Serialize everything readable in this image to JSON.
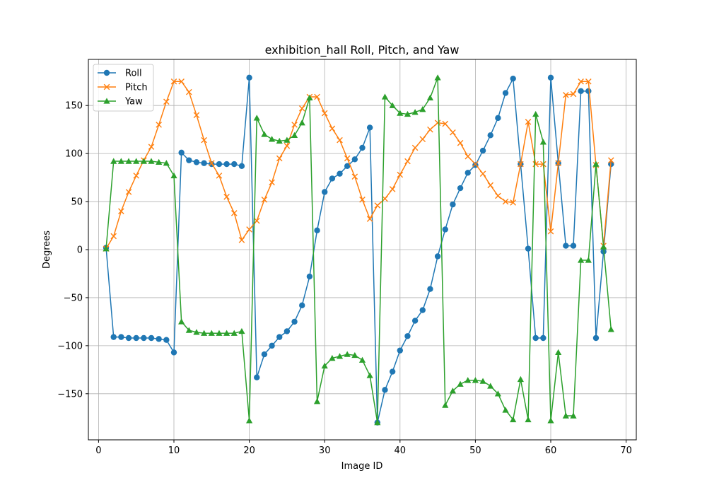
{
  "chart_data": {
    "type": "line",
    "title": "exhibition_hall Roll, Pitch, and Yaw",
    "xlabel": "Image ID",
    "ylabel": "Degrees",
    "xlim": [
      -1.35,
      71.35
    ],
    "ylim": [
      -198,
      198
    ],
    "xticks": [
      0,
      10,
      20,
      30,
      40,
      50,
      60,
      70
    ],
    "yticks": [
      -150,
      -100,
      -50,
      0,
      50,
      100,
      150
    ],
    "grid": true,
    "legend_position": "top-left",
    "x": [
      1,
      2,
      3,
      4,
      5,
      6,
      7,
      8,
      9,
      10,
      11,
      12,
      13,
      14,
      15,
      16,
      17,
      18,
      19,
      20,
      21,
      22,
      23,
      24,
      25,
      26,
      27,
      28,
      29,
      30,
      31,
      32,
      33,
      34,
      35,
      36,
      37,
      38,
      39,
      40,
      41,
      42,
      43,
      44,
      45,
      46,
      47,
      48,
      49,
      50,
      51,
      52,
      53,
      54,
      55,
      56,
      57,
      58,
      59,
      60,
      61,
      62,
      63,
      64,
      65,
      66,
      67,
      68
    ],
    "series": [
      {
        "name": "Roll",
        "color": "#1f77b4",
        "marker": "circle",
        "values": [
          2,
          -91,
          -91,
          -92,
          -92,
          -92,
          -92,
          -93,
          -94,
          -107,
          101,
          93,
          91,
          90,
          89,
          89,
          89,
          89,
          87,
          179,
          -133,
          -109,
          -100,
          -91,
          -85,
          -75,
          -58,
          -28,
          20,
          60,
          74,
          79,
          87,
          94,
          106,
          127,
          -180,
          -146,
          -127,
          -105,
          -90,
          -74,
          -63,
          -41,
          -7,
          21,
          47,
          64,
          80,
          88,
          103,
          119,
          137,
          163,
          178,
          89,
          1,
          -92,
          -92,
          179,
          90,
          4,
          4,
          165,
          165,
          -92,
          -2,
          89
        ]
      },
      {
        "name": "Pitch",
        "color": "#ff7f0e",
        "marker": "x",
        "values": [
          1,
          14,
          40,
          60,
          77,
          93,
          107,
          130,
          154,
          175,
          175,
          164,
          140,
          114,
          90,
          77,
          55,
          38,
          10,
          21,
          30,
          52,
          70,
          95,
          108,
          130,
          147,
          159,
          159,
          142,
          126,
          114,
          95,
          76,
          52,
          32,
          46,
          53,
          63,
          78,
          92,
          106,
          115,
          125,
          132,
          131,
          122,
          111,
          97,
          89,
          79,
          67,
          56,
          50,
          49,
          89,
          133,
          89,
          89,
          19,
          90,
          161,
          162,
          175,
          175,
          88,
          4,
          93
        ]
      },
      {
        "name": "Yaw",
        "color": "#2ca02c",
        "marker": "triangle",
        "values": [
          1,
          92,
          92,
          92,
          92,
          92,
          92,
          91,
          90,
          77,
          -75,
          -84,
          -86,
          -87,
          -87,
          -87,
          -87,
          -87,
          -85,
          -178,
          137,
          120,
          115,
          113,
          114,
          119,
          132,
          158,
          -158,
          -121,
          -113,
          -111,
          -109,
          -110,
          -115,
          -131,
          -180,
          159,
          150,
          142,
          141,
          143,
          146,
          158,
          179,
          -162,
          -147,
          -140,
          -136,
          -136,
          -137,
          -142,
          -150,
          -167,
          -177,
          -135,
          -177,
          141,
          112,
          -178,
          -107,
          -173,
          -173,
          -11,
          -11,
          89,
          3,
          -83
        ]
      }
    ]
  }
}
